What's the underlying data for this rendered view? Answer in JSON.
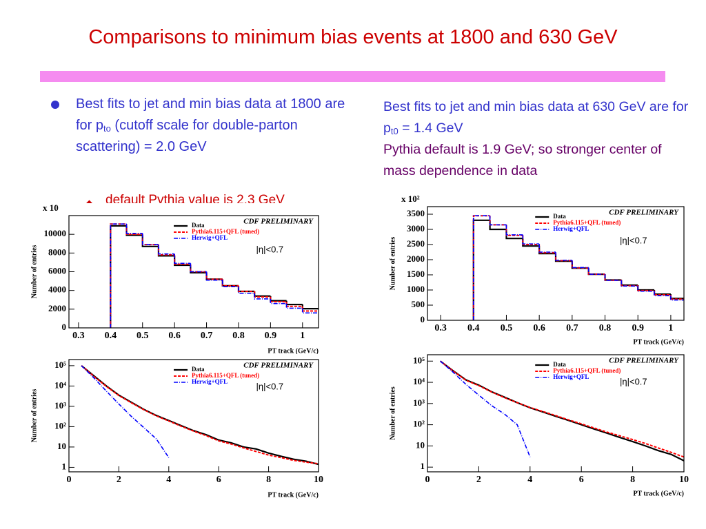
{
  "title": "Comparisons to minimum bias events at 1800 and 630 GeV",
  "left_text": {
    "bullet": {
      "before": "Best fits to jet and min bias data at 1800 are for p",
      "sub": "to",
      "after": " (cutoff scale for double-parton scattering) = 2.0 GeV"
    },
    "sub_bullet": "default Pythia value is 2.3 GeV"
  },
  "right_text": {
    "blue": {
      "before": "Best fits to jet and min bias data at 630 GeV are for p",
      "sub": "t0",
      "after": " = 1.4 GeV"
    },
    "purple": "Pythia default is 1.9 GeV; so stronger center of mass dependence in data"
  },
  "chart_data": [
    {
      "type": "histogram",
      "multiplier": "x 10",
      "xlabel": "PT track (GeV/c)",
      "ylabel": "Number of entries",
      "annotations": [
        "CDF PRELIMINARY",
        "|η|<0.7"
      ],
      "legend": "upper right",
      "bins": [
        0.4,
        0.45,
        0.5,
        0.55,
        0.6,
        0.65,
        0.7,
        0.75,
        0.8,
        0.85,
        0.9,
        0.95,
        1.0,
        1.05
      ],
      "xlim": [
        0.27,
        1.05
      ],
      "xticks": [
        0.3,
        0.4,
        0.5,
        0.6,
        0.7,
        0.8,
        0.9,
        1
      ],
      "ylim": [
        0,
        12000
      ],
      "yticks": [
        0,
        2000,
        4000,
        6000,
        8000,
        10000
      ],
      "series": [
        {
          "name": "Data",
          "color": "#000000",
          "style": "solid",
          "values": [
            10900,
            9900,
            8700,
            7700,
            6700,
            5900,
            5200,
            4500,
            3900,
            3400,
            2900,
            2500,
            2050
          ]
        },
        {
          "name": "Pythia6.115+QFL (tuned)",
          "color": "#ff0000",
          "style": "dashed",
          "values": [
            11100,
            10000,
            8900,
            7800,
            6800,
            6000,
            5200,
            4500,
            3900,
            3300,
            2800,
            2300,
            1800
          ]
        },
        {
          "name": "Herwig+QFL",
          "color": "#0000ff",
          "style": "dashdot",
          "values": [
            11100,
            10100,
            8900,
            7900,
            6900,
            6000,
            5100,
            4400,
            3700,
            3100,
            2600,
            2100,
            1600
          ]
        }
      ]
    },
    {
      "type": "line",
      "log_y": true,
      "xlabel": "PT track (GeV/c)",
      "ylabel": "Number of entries",
      "annotations": [
        "CDF PRELIMINARY",
        "|η|<0.7"
      ],
      "legend": "upper right",
      "x": [
        0.5,
        1,
        1.5,
        2,
        2.5,
        3,
        3.5,
        4,
        4.5,
        5,
        5.5,
        6,
        6.5,
        7,
        7.5,
        8,
        8.5,
        9,
        9.5,
        10
      ],
      "xlim": [
        0,
        10
      ],
      "xticks": [
        0,
        2,
        4,
        6,
        8,
        10
      ],
      "ylim": [
        0.6,
        200000
      ],
      "yticks": [
        1,
        10,
        {
          "value": 100,
          "label": "10²"
        },
        {
          "value": 1000,
          "label": "10³"
        },
        {
          "value": 10000,
          "label": "10⁴"
        },
        {
          "value": 100000,
          "label": "10⁵"
        }
      ],
      "series": [
        {
          "name": "Data",
          "color": "#000000",
          "style": "solid",
          "values": [
            100000,
            31600,
            10000,
            3550,
            1580,
            710,
            355,
            200,
            112,
            63,
            40,
            22,
            16,
            10,
            8,
            5,
            3.5,
            2.5,
            2,
            1.4
          ]
        },
        {
          "name": "Pythia6.115+QFL (tuned)",
          "color": "#ff0000",
          "style": "dashed",
          "values": [
            100000,
            30000,
            9500,
            3400,
            1500,
            680,
            340,
            190,
            105,
            60,
            36,
            20,
            14,
            9,
            6,
            4,
            3,
            2.2,
            1.8,
            1.5
          ]
        },
        {
          "name": "Herwig+QFL",
          "color": "#0000ff",
          "style": "dashdot",
          "values": [
            100000,
            25000,
            5600,
            1300,
            320,
            90,
            25,
            3,
            null,
            null,
            null,
            null,
            null,
            null,
            null,
            null,
            null,
            null,
            null,
            null
          ]
        }
      ]
    },
    {
      "type": "histogram",
      "multiplier": "x 10²",
      "xlabel": "PT track (GeV/c)",
      "ylabel": "Number of entries",
      "annotations": [
        "CDF PRELIMINARY",
        "|η|<0.7"
      ],
      "legend": "upper right",
      "bins": [
        0.4,
        0.45,
        0.5,
        0.55,
        0.6,
        0.65,
        0.7,
        0.75,
        0.8,
        0.85,
        0.9,
        0.95,
        1.0,
        1.05
      ],
      "xlim": [
        0.26,
        1.04
      ],
      "xticks": [
        0.3,
        0.4,
        0.5,
        0.6,
        0.7,
        0.8,
        0.9,
        1
      ],
      "ylim": [
        0,
        3750
      ],
      "yticks": [
        0,
        500,
        1000,
        1500,
        2000,
        2500,
        3000,
        3500
      ],
      "series": [
        {
          "name": "Data",
          "color": "#000000",
          "style": "solid",
          "values": [
            3300,
            3000,
            2700,
            2450,
            2200,
            1950,
            1720,
            1520,
            1330,
            1160,
            1000,
            860,
            720
          ]
        },
        {
          "name": "Pythia6.115+QFL (tuned)",
          "color": "#ff0000",
          "style": "dashed",
          "values": [
            3450,
            3150,
            2800,
            2500,
            2230,
            1970,
            1730,
            1520,
            1320,
            1140,
            980,
            840,
            700
          ]
        },
        {
          "name": "Herwig+QFL",
          "color": "#0000ff",
          "style": "dashdot",
          "values": [
            3450,
            3150,
            2820,
            2520,
            2250,
            1980,
            1740,
            1520,
            1320,
            1130,
            960,
            810,
            670
          ]
        }
      ]
    },
    {
      "type": "line",
      "log_y": true,
      "xlabel": "PT track (GeV/c)",
      "ylabel": "Number of entries",
      "annotations": [
        "CDF PRELIMINARY",
        "|η|<0.7"
      ],
      "legend": "upper right",
      "x": [
        0.5,
        1,
        1.5,
        2,
        2.5,
        3,
        3.5,
        4,
        4.5,
        5,
        5.5,
        6,
        6.5,
        7,
        7.5,
        8,
        8.5,
        9,
        9.5,
        10
      ],
      "xlim": [
        0,
        10
      ],
      "xticks": [
        0,
        2,
        4,
        6,
        8,
        10
      ],
      "ylim": [
        0.6,
        200000
      ],
      "yticks": [
        1,
        10,
        {
          "value": 100,
          "label": "10²"
        },
        {
          "value": 1000,
          "label": "10³"
        },
        {
          "value": 10000,
          "label": "10⁴"
        },
        {
          "value": 100000,
          "label": "10⁵"
        }
      ],
      "series": [
        {
          "name": "Data",
          "color": "#000000",
          "style": "solid",
          "values": [
            100000,
            35000,
            13000,
            7400,
            3600,
            2000,
            1100,
            630,
            400,
            250,
            160,
            100,
            63,
            40,
            25,
            16,
            10,
            6,
            4,
            2
          ]
        },
        {
          "name": "Pythia6.115+QFL (tuned)",
          "color": "#ff0000",
          "style": "dashed",
          "values": [
            100000,
            34000,
            12500,
            7000,
            3500,
            1900,
            1100,
            650,
            420,
            270,
            170,
            110,
            70,
            45,
            30,
            20,
            13,
            8,
            5,
            3
          ]
        },
        {
          "name": "Herwig+QFL",
          "color": "#0000ff",
          "style": "dashdot",
          "values": [
            100000,
            30000,
            8000,
            2500,
            800,
            320,
            100,
            3,
            null,
            null,
            null,
            null,
            null,
            null,
            null,
            null,
            null,
            null,
            null,
            null
          ]
        }
      ]
    }
  ]
}
